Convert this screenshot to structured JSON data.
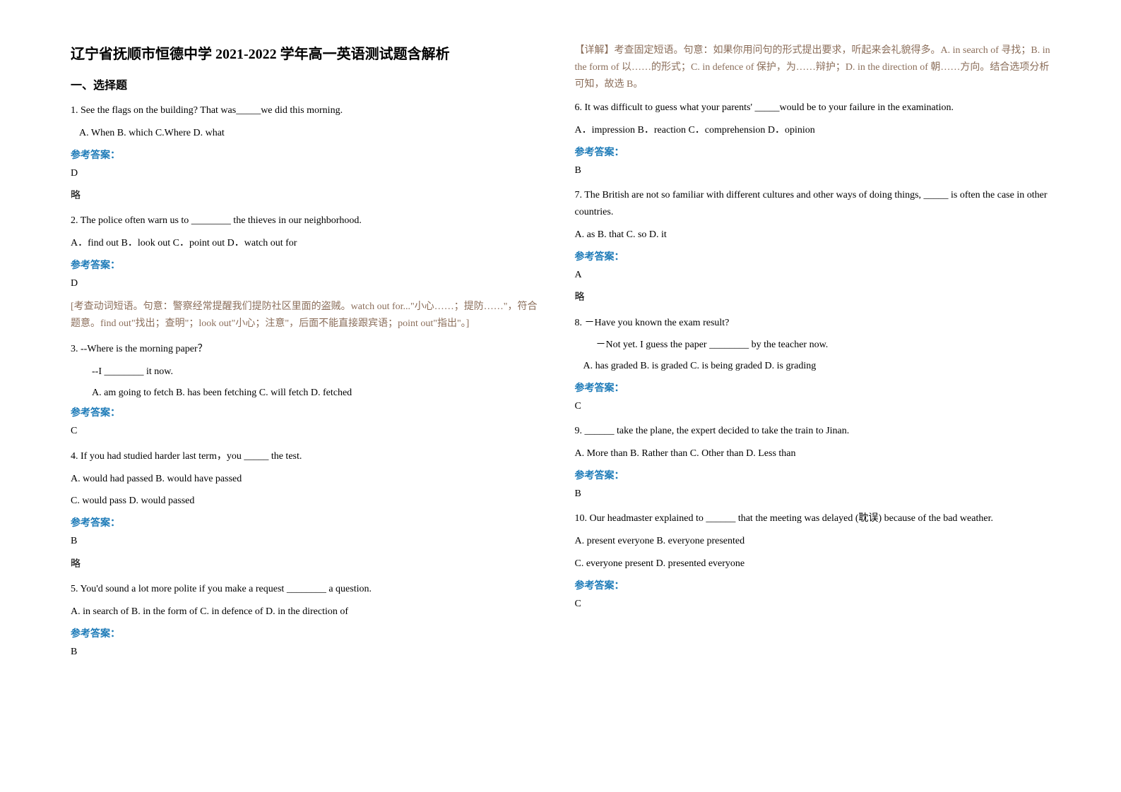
{
  "title": "辽宁省抚顺市恒德中学 2021-2022 学年高一英语测试题含解析",
  "section_heading": "一、选择题",
  "left": {
    "q1": {
      "text": "1. See the flags on the building? That was_____we did this morning.",
      "options": "A. When        B. which        C.Where        D. what",
      "answer_label": "参考答案：",
      "answer": "D",
      "note": "略"
    },
    "q2": {
      "text": "2. The police often warn us to ________ the thieves in our neighborhood.",
      "options": "A．find out    B．look out    C．point out    D．watch out for",
      "answer_label": "参考答案：",
      "answer": "D",
      "explanation": "[考查动词短语。句意：警察经常提醒我们提防社区里面的盗贼。watch out for...\"小心……；提防……\"，符合题意。find out\"找出；查明\"；look out\"小心；注意\"，后面不能直接跟宾语；point out\"指出\"。]"
    },
    "q3": {
      "text": "3. --Where is the morning paper？",
      "sub1": "--I ________ it now.",
      "options": "A. am going to fetch   B. has been fetching  C. will fetch   D. fetched",
      "answer_label": "参考答案：",
      "answer": "C"
    },
    "q4": {
      "text": "4. If you had studied harder last term，you _____ the test.",
      "optionsA": "A. would had passed        B. would have passed",
      "optionsB": "C. would pass           D. would passed",
      "answer_label": "参考答案：",
      "answer": "B",
      "note": "略"
    },
    "q5": {
      "text": "5. You'd sound a lot more polite if you make a request ________ a question.",
      "options": "A. in search of   B. in the form of            C. in defence of D. in the direction of",
      "answer_label": "参考答案：",
      "answer": "B"
    }
  },
  "right": {
    "explanation5": "【详解】考查固定短语。句意：如果你用问句的形式提出要求，听起来会礼貌得多。A. in search of 寻找；B. in the form of 以……的形式；C. in defence of 保护，为……辩护；D. in the direction of 朝……方向。结合选项分析可知，故选 B。",
    "q6": {
      "text": "6. It was difficult to guess what your parents' _____would be to your failure in the examination.",
      "options": "A．impression    B．reaction    C．comprehension    D．opinion",
      "answer_label": "参考答案：",
      "answer": "B"
    },
    "q7": {
      "text": "7. The British are not so familiar with different cultures and other ways of doing things, _____ is often the case in other countries.",
      "options": "A. as               B. that               C. so               D. it",
      "answer_label": "参考答案：",
      "answer": "A",
      "note": "略"
    },
    "q8": {
      "text": "8. －Have you known the exam result?",
      "sub1": "－Not yet. I guess the paper ________ by the teacher now.",
      "options": "A. has graded        B. is graded          C. is being graded    D. is grading",
      "answer_label": "参考答案：",
      "answer": "C"
    },
    "q9": {
      "text": "9. ______ take the plane, the expert decided to take the train to Jinan.",
      "options": "A. More than    B. Rather than   C. Other than  D. Less than",
      "answer_label": "参考答案：",
      "answer": "B"
    },
    "q10": {
      "text": "10. Our headmaster explained to ______ that the meeting was delayed (耽误) because of the bad weather.",
      "optionsA": "A. present everyone     B. everyone presented",
      "optionsB": "C. everyone present     D. presented everyone",
      "answer_label": "参考答案：",
      "answer": "C"
    }
  }
}
